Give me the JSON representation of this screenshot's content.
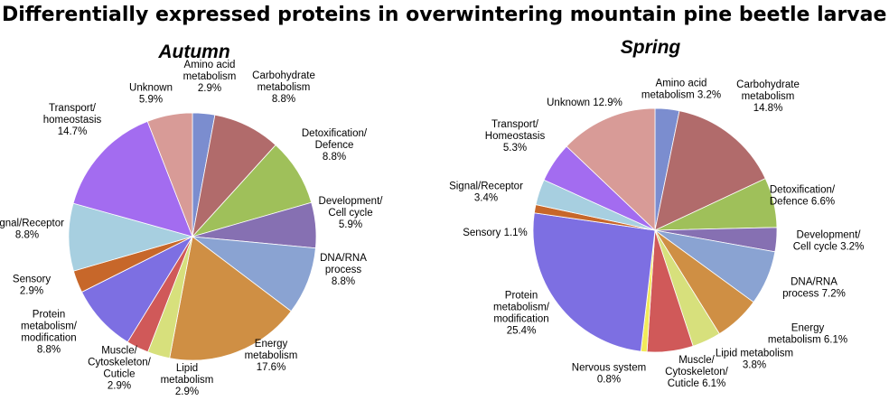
{
  "title": "Differentially expressed proteins in overwintering mountain pine beetle larvae",
  "chart_data": [
    {
      "type": "pie",
      "title": "Autumn",
      "slices": [
        {
          "label": [
            "Amino acid",
            "metabolism",
            "2.9%"
          ],
          "value": 2.9,
          "color": "#7b8dcf"
        },
        {
          "label": [
            "Carbohydrate",
            "metabolism",
            "8.8%"
          ],
          "value": 8.8,
          "color": "#b16b6b"
        },
        {
          "label": [
            "Detoxification/",
            "Defence",
            "8.8%"
          ],
          "value": 8.8,
          "color": "#9fc05a"
        },
        {
          "label": [
            "Development/",
            "Cell cycle",
            "5.9%"
          ],
          "value": 5.9,
          "color": "#8670b2"
        },
        {
          "label": [
            "DNA/RNA",
            "process",
            "8.8%"
          ],
          "value": 8.8,
          "color": "#8aa3d2"
        },
        {
          "label": [
            "Energy",
            "metabolism",
            "17.6%"
          ],
          "value": 17.6,
          "color": "#cf8f44"
        },
        {
          "label": [
            "Lipid",
            "metabolism",
            "2.9%"
          ],
          "value": 2.9,
          "color": "#d7e07c"
        },
        {
          "label": [
            "Muscle/",
            "Cytoskeleton/",
            "Cuticle",
            "2.9%"
          ],
          "value": 2.9,
          "color": "#d05959"
        },
        {
          "label": [
            "Protein",
            "metabolism/",
            "modification",
            "8.8%"
          ],
          "value": 8.8,
          "color": "#7d6fe2"
        },
        {
          "label": [
            "Sensory",
            "2.9%"
          ],
          "value": 2.9,
          "color": "#c7672a"
        },
        {
          "label": [
            "Signal/Receptor",
            "8.8%"
          ],
          "value": 8.8,
          "color": "#a7cfe0"
        },
        {
          "label": [
            "Transport/",
            "homeostasis",
            "14.7%"
          ],
          "value": 14.7,
          "color": "#a36cf0"
        },
        {
          "label": [
            "Unknown",
            "5.9%"
          ],
          "value": 5.9,
          "color": "#d89b97"
        }
      ]
    },
    {
      "type": "pie",
      "title": "Spring",
      "slices": [
        {
          "label": [
            "Amino acid",
            "metabolism 3.2%"
          ],
          "value": 3.2,
          "color": "#7b8dcf"
        },
        {
          "label": [
            "Carbohydrate",
            "metabolism",
            "14.8%"
          ],
          "value": 14.8,
          "color": "#b16b6b"
        },
        {
          "label": [
            "Detoxification/",
            "Defence 6.6%"
          ],
          "value": 6.6,
          "color": "#9fc05a"
        },
        {
          "label": [
            "Development/",
            "Cell cycle 3.2%"
          ],
          "value": 3.2,
          "color": "#8670b2"
        },
        {
          "label": [
            "DNA/RNA",
            "process 7.2%"
          ],
          "value": 7.2,
          "color": "#8aa3d2"
        },
        {
          "label": [
            "Energy",
            "metabolism 6.1%"
          ],
          "value": 6.1,
          "color": "#cf8f44"
        },
        {
          "label": [
            "Lipid metabolism",
            "3.8%"
          ],
          "value": 3.8,
          "color": "#d7e07c"
        },
        {
          "label": [
            "Muscle/",
            "Cytoskeleton/",
            "Cuticle 6.1%"
          ],
          "value": 6.1,
          "color": "#d05959"
        },
        {
          "label": [
            "Nervous system",
            "0.8%"
          ],
          "value": 0.8,
          "color": "#f2ea5a"
        },
        {
          "label": [
            "Protein",
            "metabolism/",
            "modification",
            "25.4%"
          ],
          "value": 25.4,
          "color": "#7d6fe2"
        },
        {
          "label": [
            "Sensory 1.1%"
          ],
          "value": 1.1,
          "color": "#c7672a"
        },
        {
          "label": [
            "Signal/Receptor",
            "3.4%"
          ],
          "value": 3.4,
          "color": "#a7cfe0"
        },
        {
          "label": [
            "Transport/",
            "Homeostasis",
            "5.3%"
          ],
          "value": 5.3,
          "color": "#a36cf0"
        },
        {
          "label": [
            "Unknown 12.9%"
          ],
          "value": 12.9,
          "color": "#d89b97"
        }
      ]
    }
  ]
}
